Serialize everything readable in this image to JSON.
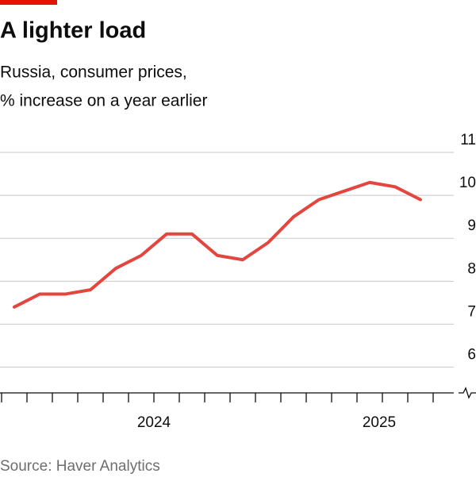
{
  "chart_data": {
    "type": "line",
    "title": "A lighter load",
    "subtitle": [
      "Russia, consumer prices,",
      "% increase on a year earlier"
    ],
    "source": "Source: Haver Analytics",
    "categories": [
      "2024",
      null,
      null,
      null,
      null,
      null,
      null,
      null,
      null,
      null,
      null,
      null,
      "2025",
      null,
      null,
      null,
      null
    ],
    "series": [
      {
        "color": "#e3463e",
        "values": [
          7.4,
          7.7,
          7.7,
          7.8,
          8.3,
          8.6,
          9.1,
          9.1,
          8.6,
          8.5,
          8.9,
          9.5,
          9.9,
          10.1,
          10.3,
          10.2,
          9.9
        ]
      }
    ],
    "ylim": [
      5.4,
      11
    ],
    "yticks": [
      6,
      7,
      8,
      9,
      10,
      11
    ],
    "grid": true
  }
}
